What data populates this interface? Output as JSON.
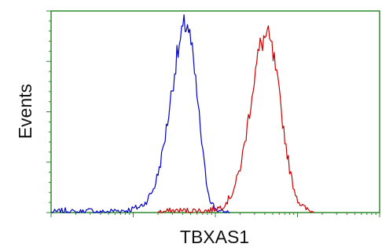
{
  "chart_data": {
    "type": "line",
    "title": "",
    "xlabel": "TBXAS1",
    "ylabel": "Events",
    "x_scale": "log",
    "xlim": [
      1,
      10000
    ],
    "ylim": [
      0,
      1
    ],
    "grid": false,
    "legend": "none",
    "frame_color": "#2e8b2e",
    "series": [
      {
        "color": "#0000cc",
        "points": [
          [
            1.0,
            0.0
          ],
          [
            1.5,
            0.01
          ],
          [
            2.0,
            0.0
          ],
          [
            3.0,
            0.01
          ],
          [
            4.0,
            0.0
          ],
          [
            6.0,
            0.01
          ],
          [
            8.0,
            0.01
          ],
          [
            10.0,
            0.02
          ],
          [
            12.0,
            0.03
          ],
          [
            14.0,
            0.05
          ],
          [
            16.0,
            0.09
          ],
          [
            18.0,
            0.13
          ],
          [
            20.0,
            0.2
          ],
          [
            22.0,
            0.28
          ],
          [
            24.0,
            0.37
          ],
          [
            26.0,
            0.46
          ],
          [
            28.0,
            0.56
          ],
          [
            30.0,
            0.65
          ],
          [
            32.0,
            0.73
          ],
          [
            34.0,
            0.8
          ],
          [
            36.0,
            0.85
          ],
          [
            38.0,
            0.89
          ],
          [
            40.0,
            0.93
          ],
          [
            42.0,
            0.96
          ],
          [
            44.0,
            0.98
          ],
          [
            46.0,
            0.97
          ],
          [
            48.0,
            0.93
          ],
          [
            50.0,
            0.88
          ],
          [
            53.0,
            0.8
          ],
          [
            56.0,
            0.71
          ],
          [
            60.0,
            0.6
          ],
          [
            64.0,
            0.48
          ],
          [
            68.0,
            0.37
          ],
          [
            72.0,
            0.27
          ],
          [
            76.0,
            0.19
          ],
          [
            80.0,
            0.13
          ],
          [
            85.0,
            0.08
          ],
          [
            90.0,
            0.05
          ],
          [
            100.0,
            0.02
          ],
          [
            110.0,
            0.01
          ],
          [
            120.0,
            0.0
          ],
          [
            150.0,
            0.0
          ]
        ]
      },
      {
        "color": "#cc0000",
        "points": [
          [
            20.0,
            0.0
          ],
          [
            30.0,
            0.01
          ],
          [
            40.0,
            0.01
          ],
          [
            60.0,
            0.01
          ],
          [
            80.0,
            0.01
          ],
          [
            100.0,
            0.02
          ],
          [
            120.0,
            0.03
          ],
          [
            140.0,
            0.06
          ],
          [
            160.0,
            0.1
          ],
          [
            180.0,
            0.16
          ],
          [
            200.0,
            0.23
          ],
          [
            220.0,
            0.32
          ],
          [
            240.0,
            0.42
          ],
          [
            260.0,
            0.52
          ],
          [
            280.0,
            0.62
          ],
          [
            300.0,
            0.7
          ],
          [
            320.0,
            0.77
          ],
          [
            340.0,
            0.83
          ],
          [
            360.0,
            0.87
          ],
          [
            380.0,
            0.89
          ],
          [
            400.0,
            0.9
          ],
          [
            420.0,
            0.91
          ],
          [
            440.0,
            0.9
          ],
          [
            460.0,
            0.88
          ],
          [
            480.0,
            0.85
          ],
          [
            520.0,
            0.78
          ],
          [
            560.0,
            0.69
          ],
          [
            600.0,
            0.6
          ],
          [
            650.0,
            0.49
          ],
          [
            700.0,
            0.39
          ],
          [
            760.0,
            0.29
          ],
          [
            820.0,
            0.2
          ],
          [
            900.0,
            0.13
          ],
          [
            1000.0,
            0.07
          ],
          [
            1100.0,
            0.04
          ],
          [
            1250.0,
            0.02
          ],
          [
            1400.0,
            0.01
          ],
          [
            1600.0,
            0.0
          ]
        ]
      }
    ]
  }
}
